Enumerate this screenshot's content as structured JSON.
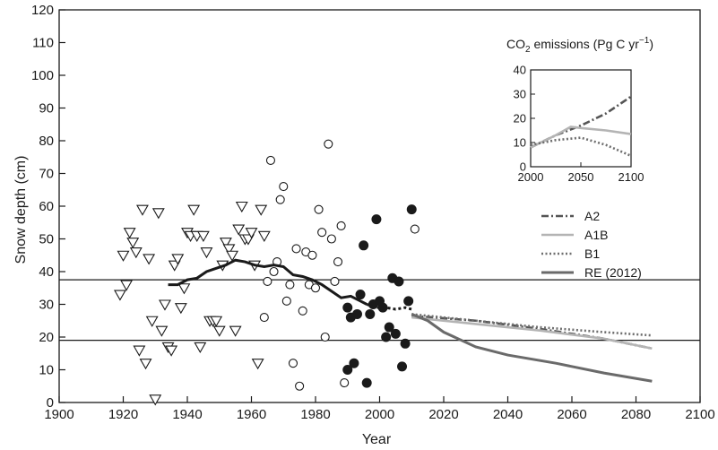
{
  "chart_data": [
    {
      "type": "scatter",
      "xlabel": "Year",
      "ylabel": "Snow depth (cm)",
      "xlim": [
        1900,
        2100
      ],
      "ylim": [
        0,
        120
      ],
      "x_ticks": [
        1900,
        1920,
        1940,
        1960,
        1980,
        2000,
        2020,
        2040,
        2060,
        2080,
        2100
      ],
      "y_ticks": [
        0,
        10,
        20,
        30,
        40,
        50,
        60,
        70,
        80,
        90,
        100,
        110,
        120
      ],
      "grid": false,
      "legend_position": "right",
      "reference_lines": [
        37.5,
        19
      ],
      "observations": {
        "triangles": [
          [
            1919,
            33
          ],
          [
            1920,
            45
          ],
          [
            1921,
            36
          ],
          [
            1922,
            52
          ],
          [
            1923,
            49
          ],
          [
            1924,
            46
          ],
          [
            1925,
            16
          ],
          [
            1926,
            59
          ],
          [
            1927,
            12
          ],
          [
            1928,
            44
          ],
          [
            1929,
            25
          ],
          [
            1930,
            1
          ],
          [
            1931,
            58
          ],
          [
            1932,
            22
          ],
          [
            1933,
            30
          ],
          [
            1934,
            17
          ],
          [
            1935,
            16
          ],
          [
            1936,
            42
          ],
          [
            1937,
            44
          ],
          [
            1938,
            29
          ],
          [
            1939,
            35
          ],
          [
            1940,
            52
          ],
          [
            1941,
            51
          ],
          [
            1942,
            59
          ],
          [
            1943,
            51
          ],
          [
            1944,
            17
          ],
          [
            1945,
            51
          ],
          [
            1946,
            46
          ],
          [
            1947,
            25
          ],
          [
            1948,
            25
          ],
          [
            1949,
            25
          ],
          [
            1950,
            22
          ],
          [
            1951,
            42
          ],
          [
            1952,
            49
          ],
          [
            1953,
            47
          ],
          [
            1954,
            45
          ],
          [
            1955,
            22
          ],
          [
            1956,
            53
          ],
          [
            1957,
            60
          ],
          [
            1958,
            50
          ],
          [
            1959,
            50
          ],
          [
            1960,
            52
          ],
          [
            1961,
            42
          ],
          [
            1962,
            12
          ],
          [
            1963,
            59
          ],
          [
            1964,
            51
          ]
        ],
        "open_circles": [
          [
            1964,
            26
          ],
          [
            1965,
            37
          ],
          [
            1966,
            74
          ],
          [
            1967,
            40
          ],
          [
            1968,
            43
          ],
          [
            1969,
            62
          ],
          [
            1970,
            66
          ],
          [
            1971,
            31
          ],
          [
            1972,
            36
          ],
          [
            1973,
            12
          ],
          [
            1974,
            47
          ],
          [
            1975,
            5
          ],
          [
            1976,
            28
          ],
          [
            1977,
            46
          ],
          [
            1978,
            36
          ],
          [
            1979,
            45
          ],
          [
            1980,
            35
          ],
          [
            1981,
            59
          ],
          [
            1982,
            52
          ],
          [
            1983,
            20
          ],
          [
            1984,
            79
          ],
          [
            1985,
            50
          ],
          [
            1986,
            37
          ],
          [
            1987,
            43
          ],
          [
            1988,
            54
          ],
          [
            1989,
            6
          ],
          [
            2011,
            53
          ]
        ],
        "filled_circles": [
          [
            1990,
            29
          ],
          [
            1990,
            10
          ],
          [
            1991,
            26
          ],
          [
            1992,
            12
          ],
          [
            1993,
            27
          ],
          [
            1994,
            33
          ],
          [
            1995,
            48
          ],
          [
            1996,
            6
          ],
          [
            1997,
            27
          ],
          [
            1998,
            30
          ],
          [
            1999,
            56
          ],
          [
            2000,
            31
          ],
          [
            2001,
            29
          ],
          [
            2002,
            20
          ],
          [
            2003,
            23
          ],
          [
            2004,
            38
          ],
          [
            2005,
            21
          ],
          [
            2006,
            37
          ],
          [
            2007,
            11
          ],
          [
            2008,
            18
          ],
          [
            2009,
            31
          ],
          [
            2010,
            59
          ]
        ]
      },
      "running_mean": {
        "solid": [
          [
            1934,
            36
          ],
          [
            1937,
            36
          ],
          [
            1940,
            37.5
          ],
          [
            1943,
            38
          ],
          [
            1946,
            40
          ],
          [
            1949,
            41
          ],
          [
            1952,
            42
          ],
          [
            1955,
            43.5
          ],
          [
            1958,
            43
          ],
          [
            1961,
            42
          ],
          [
            1964,
            41.5
          ],
          [
            1967,
            42
          ],
          [
            1970,
            41.5
          ],
          [
            1973,
            39
          ],
          [
            1976,
            38.5
          ],
          [
            1979,
            37.5
          ],
          [
            1982,
            36
          ],
          [
            1985,
            34
          ],
          [
            1988,
            32
          ],
          [
            1991,
            32.5
          ],
          [
            1994,
            31
          ],
          [
            1996,
            30
          ]
        ],
        "dotted": [
          [
            1996,
            30
          ],
          [
            1999,
            29
          ],
          [
            2002,
            29
          ],
          [
            2005,
            28.5
          ],
          [
            2008,
            29
          ],
          [
            2010,
            28.5
          ]
        ]
      },
      "series": [
        {
          "name": "A2",
          "color": "#555555",
          "dash": "dashdot",
          "x": [
            2010,
            2030,
            2050,
            2070,
            2085
          ],
          "values": [
            26.5,
            25,
            22.5,
            19.5,
            16.5
          ]
        },
        {
          "name": "A1B",
          "color": "#b4b4b4",
          "dash": "solid",
          "x": [
            2010,
            2030,
            2050,
            2070,
            2085
          ],
          "values": [
            26,
            24,
            22,
            19.5,
            16.5
          ]
        },
        {
          "name": "B1",
          "color": "#6e6e6e",
          "dash": "dotted",
          "x": [
            2010,
            2030,
            2050,
            2070,
            2085
          ],
          "values": [
            27,
            25,
            23,
            21.5,
            20.5
          ]
        },
        {
          "name": "RE (2012)",
          "color": "#6a6a6a",
          "dash": "solid",
          "x": [
            2010,
            2015,
            2020,
            2030,
            2040,
            2055,
            2070,
            2085
          ],
          "values": [
            27,
            25,
            21.5,
            17,
            14.5,
            12,
            9,
            6.5
          ]
        }
      ]
    },
    {
      "type": "line",
      "title": "CO",
      "title_sub": "2",
      "title_rest": " emissions (Pg C yr",
      "title_sup": "−1",
      "title_end": ")",
      "xlim": [
        2000,
        2100
      ],
      "ylim": [
        0,
        40
      ],
      "x_ticks": [
        2000,
        2050,
        2100
      ],
      "y_ticks": [
        0,
        10,
        20,
        30,
        40
      ],
      "grid": false,
      "series": [
        {
          "name": "A2",
          "color": "#555555",
          "dash": "dashdot",
          "x": [
            2000,
            2025,
            2050,
            2075,
            2100
          ],
          "values": [
            8,
            13,
            17,
            22,
            29
          ]
        },
        {
          "name": "A1B",
          "color": "#b4b4b4",
          "dash": "solid",
          "x": [
            2000,
            2025,
            2040,
            2050,
            2075,
            2100
          ],
          "values": [
            8,
            13,
            16.5,
            16,
            15,
            13.5
          ]
        },
        {
          "name": "B1",
          "color": "#6e6e6e",
          "dash": "dotted",
          "x": [
            2000,
            2025,
            2050,
            2075,
            2100
          ],
          "values": [
            9,
            11,
            12,
            9,
            4.5
          ]
        }
      ]
    }
  ]
}
